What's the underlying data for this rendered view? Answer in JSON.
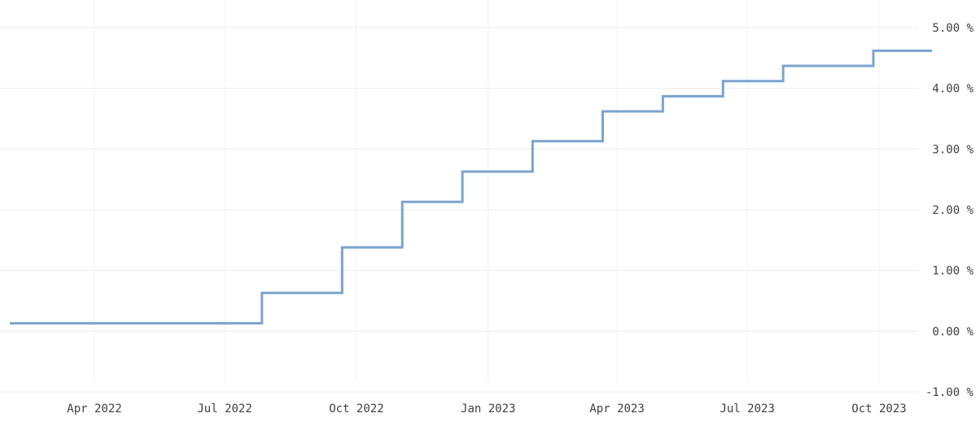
{
  "chart_data": {
    "type": "line",
    "style": "step",
    "title": "",
    "xlabel": "",
    "ylabel": "",
    "ylim": [
      -1.0,
      5.0
    ],
    "y_unit": "%",
    "grid": true,
    "legend": "none",
    "y_ticks": [
      "5.00 %",
      "4.00 %",
      "3.00 %",
      "2.00 %",
      "1.00 %",
      "0.00 %",
      "-1.00 %"
    ],
    "y_tick_values": [
      5,
      4,
      3,
      2,
      1,
      0,
      -1
    ],
    "x_ticks": [
      {
        "date": "2022-04-01",
        "label": "Apr 2022"
      },
      {
        "date": "2022-07-01",
        "label": "Jul 2022"
      },
      {
        "date": "2022-10-01",
        "label": "Oct 2022"
      },
      {
        "date": "2023-01-01",
        "label": "Jan 2023"
      },
      {
        "date": "2023-04-01",
        "label": "Apr 2023"
      },
      {
        "date": "2023-07-01",
        "label": "Jul 2023"
      },
      {
        "date": "2023-10-01",
        "label": "Oct 2023"
      }
    ],
    "series": [
      {
        "color": "#7ba3cf",
        "points": [
          {
            "x": "2022-01-19",
            "y": 0.13
          },
          {
            "x": "2022-07-27",
            "y": 0.63
          },
          {
            "x": "2022-09-21",
            "y": 1.38
          },
          {
            "x": "2022-11-02",
            "y": 2.13
          },
          {
            "x": "2022-12-14",
            "y": 2.63
          },
          {
            "x": "2023-02-01",
            "y": 3.13
          },
          {
            "x": "2023-03-22",
            "y": 3.62
          },
          {
            "x": "2023-05-03",
            "y": 3.87
          },
          {
            "x": "2023-06-14",
            "y": 4.12
          },
          {
            "x": "2023-07-26",
            "y": 4.37
          },
          {
            "x": "2023-09-27",
            "y": 4.62
          },
          {
            "x": "2023-11-07",
            "y": 4.62
          }
        ]
      }
    ]
  }
}
